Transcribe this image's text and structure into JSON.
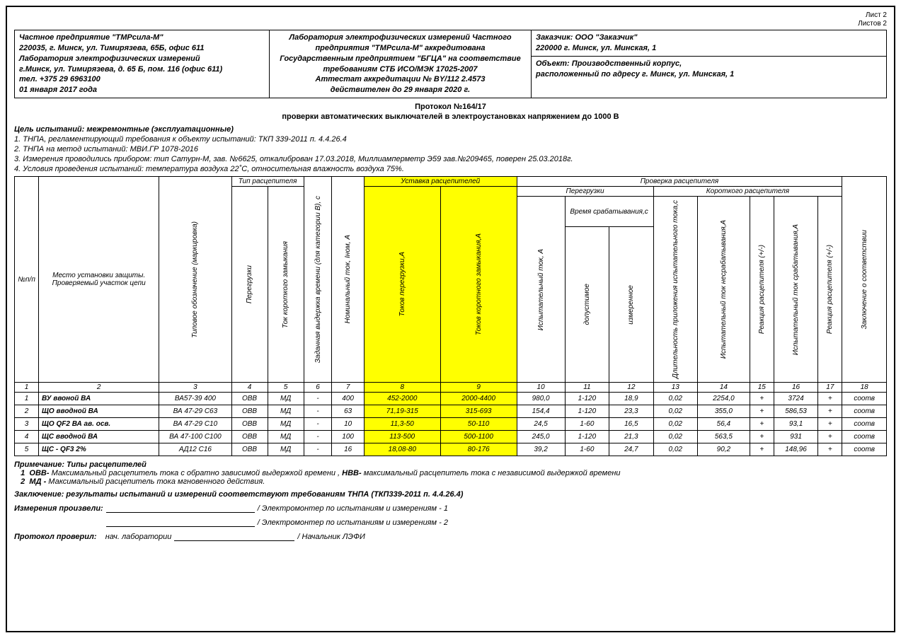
{
  "sheet": {
    "page": "Лист 2",
    "total": "Листов 2"
  },
  "org": {
    "l1": "Частное предприятие \"ТМРсила-М\"",
    "l2": "220035, г. Минск, ул. Тимирязева, 65Б, офис 611",
    "l3": "Лаборатория электрофизических измерений",
    "l4": "г.Минск, ул. Тимирязева, д. 65 Б, пом. 116 (офис 611)",
    "l5": "тел. +375 29 6963100",
    "l6": "01 января 2017 года"
  },
  "lab": {
    "l1": "Лаборатория электрофизических измерений Частного",
    "l2": "предприятия \"ТМРсила-М\" аккредитована",
    "l3": "Государственным предприятием \"БГЦА\" на соответствие",
    "l4": "требованиям СТБ ИСО/МЭК 17025-2007",
    "l5": "Аттестат аккредитации № BY/112 2.4573",
    "l6": "действителен до 29 января 2020 г."
  },
  "cust": {
    "title": "Заказчик:  ООО \"Заказчик\"",
    "addr": "220000 г. Минск, ул. Минская, 1"
  },
  "obj": {
    "title": "Объект:  Производственный корпус,",
    "addr": "расположенный по адресу г. Минск, ул. Минская, 1"
  },
  "proto": {
    "num": "Протокол №164/17",
    "sub": "проверки автоматических выключателей в электроустановках напряжением до 1000 В"
  },
  "goal": "Цель испытаний: межремонтные (эксплуатационные)",
  "notes": {
    "n1": "1. ТНПА, регламентирующий требования к объекту испытаний: ТКП 339-2011 п. 4.4.26.4",
    "n2": "2. ТНПА на метод испытаний: МВИ.ГР 1078-2016",
    "n3": "3. Измерения проводились прибором: тип Сатурн-М, зав. №6625, откалиброван 17.03.2018, Миллиамперметр Э59 зав.№209465, поверен 25.03.2018г.",
    "n4": "4. Условия проведения испытаний: температура воздуха 22˚С, относительная влажность воздуха 75%."
  },
  "hdr": {
    "npp": "№п/п",
    "place": "Место установки защиты. Проверяемый участок цепи",
    "type_mark": "Типовое обозначение (маркировка)",
    "releaser_type": "Тип расцепителя",
    "overload": "Перегрузки",
    "short_cur": "Ток короткого замыкания",
    "delay": "Заданная выдержка времени (для категории В), с",
    "inom": "Номинальный ток,  Iном, А",
    "ustavka": "Уставка расцепителей",
    "tok_over": "Токов перегрузки,А",
    "tok_short": "Токов коротного замыкания,А",
    "check": "Проверка расцепителя",
    "overloads": "Перегрузки",
    "short_rel": "Короткого расцепителя",
    "test_cur": "Испытательный ток, А",
    "trip_time": "Время срабатывания,с",
    "allowed": "допустимое",
    "measured": "измеренное",
    "dur": "Длительность приложения испытательного тока,с",
    "no_trip": "Испытательный ток несрабатывания,А",
    "react1": "Реакция расцепителя (+/-)",
    "trip_cur": "Испытательный ток срабатывания,А",
    "react2": "Реакция расцепителя (+/-)",
    "concl": "Заключение о соответствии"
  },
  "colnums": [
    "1",
    "2",
    "3",
    "4",
    "5",
    "6",
    "7",
    "8",
    "9",
    "10",
    "11",
    "12",
    "13",
    "14",
    "15",
    "16",
    "17",
    "18"
  ],
  "rows": [
    {
      "n": "1",
      "place": "ВУ ввоной ВА",
      "mark": "ВА57-39 400",
      "ov": "ОВВ",
      "sc": "МД",
      "del": "-",
      "inom": "400",
      "tov": "452-2000",
      "tsc": "2000-4400",
      "tc": "980,0",
      "al": "1-120",
      "me": "18,9",
      "du": "0,02",
      "nt": "2254,0",
      "r1": "+",
      "tr": "3724",
      "r2": "+",
      "co": "соотв"
    },
    {
      "n": "2",
      "place": "ЩО вводной ВА",
      "mark": "ВА 47-29 С63",
      "ov": "ОВВ",
      "sc": "МД",
      "del": "-",
      "inom": "63",
      "tov": "71,19-315",
      "tsc": "315-693",
      "tc": "154,4",
      "al": "1-120",
      "me": "23,3",
      "du": "0,02",
      "nt": "355,0",
      "r1": "+",
      "tr": "586,53",
      "r2": "+",
      "co": "соотв"
    },
    {
      "n": "3",
      "place": "ЩО QF2 ВА ав. осв.",
      "mark": "ВА 47-29 С10",
      "ov": "ОВВ",
      "sc": "МД",
      "del": "-",
      "inom": "10",
      "tov": "11,3-50",
      "tsc": "50-110",
      "tc": "24,5",
      "al": "1-60",
      "me": "16,5",
      "du": "0,02",
      "nt": "56,4",
      "r1": "+",
      "tr": "93,1",
      "r2": "+",
      "co": "соотв"
    },
    {
      "n": "4",
      "place": "ЩС вводной ВА",
      "mark": "ВА 47-100 С100",
      "ov": "ОВВ",
      "sc": "МД",
      "del": "-",
      "inom": "100",
      "tov": "113-500",
      "tsc": "500-1100",
      "tc": "245,0",
      "al": "1-120",
      "me": "21,3",
      "du": "0,02",
      "nt": "563,5",
      "r1": "+",
      "tr": "931",
      "r2": "+",
      "co": "соотв"
    },
    {
      "n": "5",
      "place": "ЩС - QF3 2%",
      "mark": "АД12 С16",
      "ov": "ОВВ",
      "sc": "МД",
      "del": "-",
      "inom": "16",
      "tov": "18,08-80",
      "tsc": "80-176",
      "tc": "39,2",
      "al": "1-60",
      "me": "24,7",
      "du": "0,02",
      "nt": "90,2",
      "r1": "+",
      "tr": "148,96",
      "r2": "+",
      "co": "соотв"
    }
  ],
  "footer": {
    "note_title": "Примечание: Типы расцепителей",
    "note1_num": "1",
    "note1a": "ОВВ-",
    "note1b": "  Максимальный расцепитель тока с обратно зависимой выдержкой времени ,",
    "note1c": "НВВ-",
    "note1d": "  максимальный расцепитель тока с независимой выдержкой времени",
    "note2_num": "2",
    "note2a": "МД -",
    "note2b": "  Максимальный расцепитель тока мгновенного действия.",
    "concl": "Заключение: результаты испытаний и измерений соответствуют требованиям ТНПА (ТКП339-2011 п. 4.4.26.4)",
    "sig1_lbl": "Измерения произвели:",
    "sig1_role": "/ Электромонтер по испытаниям и измерениям - 1",
    "sig2_role": "/ Электромонтер по испытаниям и измерениям - 2",
    "sig3_lbl": "Протокол проверил:",
    "sig3_pos": "нач. лаборатории",
    "sig3_role": "/ Начальник ЛЭФИ"
  },
  "colors": {
    "highlight": "#ffff00",
    "border": "#000000",
    "bg": "#ffffff"
  }
}
